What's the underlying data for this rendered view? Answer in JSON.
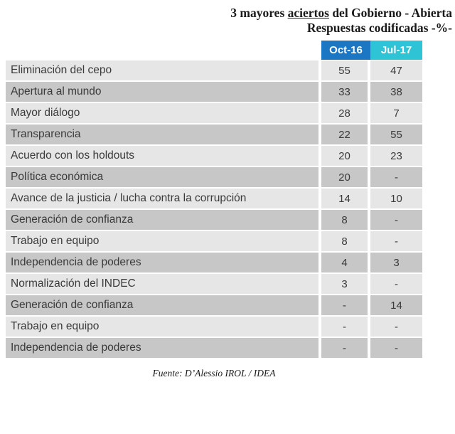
{
  "title": {
    "line1_prefix": "3 mayores ",
    "line1_underlined": "aciertos",
    "line1_suffix": " del Gobierno - Abierta",
    "line2": "Respuestas codificadas -%-"
  },
  "table": {
    "columns": [
      {
        "label": "Oct-16",
        "color": "#1b76c4"
      },
      {
        "label": "Jul-17",
        "color": "#2ec4d6"
      }
    ],
    "rows": [
      {
        "label": "Eliminación del cepo",
        "oct16": "55",
        "jul17": "47"
      },
      {
        "label": "Apertura al mundo",
        "oct16": "33",
        "jul17": "38"
      },
      {
        "label": "Mayor diálogo",
        "oct16": "28",
        "jul17": "7"
      },
      {
        "label": "Transparencia",
        "oct16": "22",
        "jul17": "55"
      },
      {
        "label": "Acuerdo con los holdouts",
        "oct16": "20",
        "jul17": "23"
      },
      {
        "label": "Política económica",
        "oct16": "20",
        "jul17": "-"
      },
      {
        "label": "Avance de la justicia / lucha contra la corrupción",
        "oct16": "14",
        "jul17": "10"
      },
      {
        "label": "Generación de confianza",
        "oct16": "8",
        "jul17": "-"
      },
      {
        "label": "Trabajo en equipo",
        "oct16": "8",
        "jul17": "-"
      },
      {
        "label": "Independencia de poderes",
        "oct16": "4",
        "jul17": "3"
      },
      {
        "label": "Normalización del INDEC",
        "oct16": "3",
        "jul17": "-"
      },
      {
        "label": "Generación de confianza",
        "oct16": "-",
        "jul17": "14"
      },
      {
        "label": "Trabajo en equipo",
        "oct16": "-",
        "jul17": "-"
      },
      {
        "label": "Independencia de poderes",
        "oct16": "-",
        "jul17": "-"
      }
    ]
  },
  "footer": {
    "source": "Fuente: D’Alessio IROL / IDEA"
  },
  "colors": {
    "header_oct16": "#1b76c4",
    "header_jul17": "#2ec4d6",
    "row_light": "#e6e6e6",
    "row_dark": "#c7c7c7",
    "cell_text": "#3a3a3a"
  },
  "chart_data": {
    "type": "table",
    "title": "3 mayores aciertos del Gobierno - Abierta",
    "subtitle": "Respuestas codificadas -%-",
    "categories": [
      "Eliminación del cepo",
      "Apertura al mundo",
      "Mayor diálogo",
      "Transparencia",
      "Acuerdo con los holdouts",
      "Política económica",
      "Avance de la justicia / lucha contra la corrupción",
      "Generación de confianza",
      "Trabajo en equipo",
      "Independencia de poderes",
      "Normalización del INDEC",
      "Generación de confianza",
      "Trabajo en equipo",
      "Independencia de poderes"
    ],
    "series": [
      {
        "name": "Oct-16",
        "values": [
          55,
          33,
          28,
          22,
          20,
          20,
          14,
          8,
          8,
          4,
          3,
          null,
          null,
          null
        ]
      },
      {
        "name": "Jul-17",
        "values": [
          47,
          38,
          7,
          55,
          23,
          null,
          10,
          null,
          null,
          3,
          null,
          14,
          null,
          null
        ]
      }
    ],
    "unit": "%",
    "source": "Fuente: D’Alessio IROL / IDEA"
  }
}
